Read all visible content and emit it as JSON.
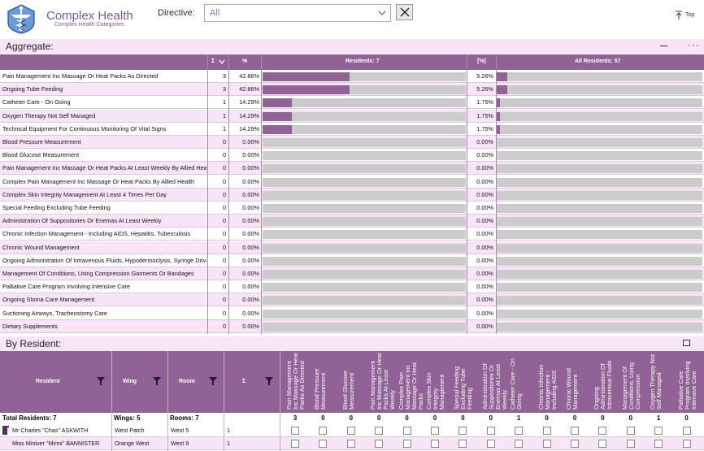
{
  "app": {
    "title": "Complex Health",
    "subtitle": "Complex Health Categories"
  },
  "directive": {
    "label": "Directive:",
    "value": "All"
  },
  "top_button": {
    "label": "Top"
  },
  "aggregate": {
    "title": "Aggregate:",
    "more": "···",
    "headers": {
      "sum": "Σ",
      "pct": "%",
      "residents": "Residents: 7",
      "pct_all": "[%]",
      "all_residents": "All Residents: 57"
    },
    "rows": [
      {
        "label": "Pain Management Inc Massage Or Heat Packs As Directed",
        "count": "3",
        "pct": "42.86%",
        "pct_value": 42.86,
        "pct_all": "5.26%",
        "pct_all_value": 5.26
      },
      {
        "label": "Ongoing Tube Feeding",
        "count": "3",
        "pct": "42.86%",
        "pct_value": 42.86,
        "pct_all": "5.26%",
        "pct_all_value": 5.26
      },
      {
        "label": "Catheter Care - On Going",
        "count": "1",
        "pct": "14.29%",
        "pct_value": 14.29,
        "pct_all": "1.75%",
        "pct_all_value": 1.75
      },
      {
        "label": "Oxygen Therapy Not Self Managed",
        "count": "1",
        "pct": "14.29%",
        "pct_value": 14.29,
        "pct_all": "1.75%",
        "pct_all_value": 1.75
      },
      {
        "label": "Technical Equipment For Continuous Monitoring Of Vital Signs",
        "count": "1",
        "pct": "14.29%",
        "pct_value": 14.29,
        "pct_all": "1.75%",
        "pct_all_value": 1.75
      },
      {
        "label": "Blood Pressure Measurement",
        "count": "0",
        "pct": "0.00%",
        "pct_value": 0,
        "pct_all": "0.00%",
        "pct_all_value": 0
      },
      {
        "label": "Blood Glucose Measurement",
        "count": "0",
        "pct": "0.00%",
        "pct_value": 0,
        "pct_all": "0.00%",
        "pct_all_value": 0
      },
      {
        "label": "Pain Management Inc Massage Or Heat Packs At Least Weekly By Allied Health",
        "count": "0",
        "pct": "0.00%",
        "pct_value": 0,
        "pct_all": "0.00%",
        "pct_all_value": 0
      },
      {
        "label": "Complex Pain Management Inc Massage Or Heat Packs By Allied Health",
        "count": "0",
        "pct": "0.00%",
        "pct_value": 0,
        "pct_all": "0.00%",
        "pct_all_value": 0
      },
      {
        "label": "Complex Skin Integrity Management At Least 4 Times Per Day",
        "count": "0",
        "pct": "0.00%",
        "pct_value": 0,
        "pct_all": "0.00%",
        "pct_all_value": 0
      },
      {
        "label": "Special Feeding Excluding Tube Feeding",
        "count": "0",
        "pct": "0.00%",
        "pct_value": 0,
        "pct_all": "0.00%",
        "pct_all_value": 0
      },
      {
        "label": "Administration Of Suppositories Or Enemas At Least Weekly",
        "count": "0",
        "pct": "0.00%",
        "pct_value": 0,
        "pct_all": "0.00%",
        "pct_all_value": 0
      },
      {
        "label": "Chronic Infection Management - Including AIDS, Hepatitis, Tuberculosis",
        "count": "0",
        "pct": "0.00%",
        "pct_value": 0,
        "pct_all": "0.00%",
        "pct_all_value": 0
      },
      {
        "label": "Chronic Wound Management",
        "count": "0",
        "pct": "0.00%",
        "pct_value": 0,
        "pct_all": "0.00%",
        "pct_all_value": 0
      },
      {
        "label": "Ongoing Administration Of Intravenous Fluids, Hypodermoclysis, Syringe Driver",
        "count": "0",
        "pct": "0.00%",
        "pct_value": 0,
        "pct_all": "0.00%",
        "pct_all_value": 0
      },
      {
        "label": "Management Of Conditions, Using Compression Garments Or Bandages",
        "count": "0",
        "pct": "0.00%",
        "pct_value": 0,
        "pct_all": "0.00%",
        "pct_all_value": 0
      },
      {
        "label": "Palliative Care Program Involving Intensive Care",
        "count": "0",
        "pct": "0.00%",
        "pct_value": 0,
        "pct_all": "0.00%",
        "pct_all_value": 0
      },
      {
        "label": "Ongoing Stoma Care Management",
        "count": "0",
        "pct": "0.00%",
        "pct_value": 0,
        "pct_all": "0.00%",
        "pct_all_value": 0
      },
      {
        "label": "Suctioning Airways, Tracheostomy Care",
        "count": "0",
        "pct": "0.00%",
        "pct_value": 0,
        "pct_all": "0.00%",
        "pct_all_value": 0
      },
      {
        "label": "Dietary Supplements",
        "count": "0",
        "pct": "0.00%",
        "pct_value": 0,
        "pct_all": "0.00%",
        "pct_all_value": 0
      }
    ]
  },
  "by_resident": {
    "title": "By Resident:",
    "headers": {
      "resident": "Resident",
      "wing": "Wing",
      "room": "Room",
      "sum": "Σ"
    },
    "category_columns": [
      "Pain Management Inc Massage Or Heat Packs As Directed",
      "Blood Pressure Measurement",
      "Blood Glucose Measurement",
      "Pain Management Inc Massage Or Heat Packs At Least Weekly",
      "Complex Pain Management Inc Massage Or Heat Packs",
      "Complex Skin Integrity Management",
      "Special Feeding Excluding Tube Feeding",
      "Administration Of Suppositories Or Enemas At Least Weekly",
      "Catheter Care - On Going",
      "Chronic Infection Management - Including AIDS",
      "Chronic Wound Management",
      "Ongoing Administration Of Intravenous Fluids",
      "Management Of Conditions, Using Compression",
      "Oxygen Therapy Not Self Managed",
      "Palliative Care Program Involving Intensive Care"
    ],
    "totals": {
      "residents": "Total Residents: 7",
      "wings": "Wings: 5",
      "rooms": "Rooms: 7",
      "counts": [
        "3",
        "0",
        "0",
        "0",
        "0",
        "0",
        "0",
        "0",
        "1",
        "0",
        "0",
        "0",
        "0",
        "1",
        "0"
      ]
    },
    "rows": [
      {
        "resident": "Mr Charles \"Chas\" ASKWITH",
        "wing": "West Patch",
        "room": "West  5",
        "sum": "1"
      },
      {
        "resident": "Miss Miniver \"Minni\" BANNISTER",
        "wing": "Orange West",
        "room": "West  9",
        "sum": "1"
      }
    ]
  }
}
